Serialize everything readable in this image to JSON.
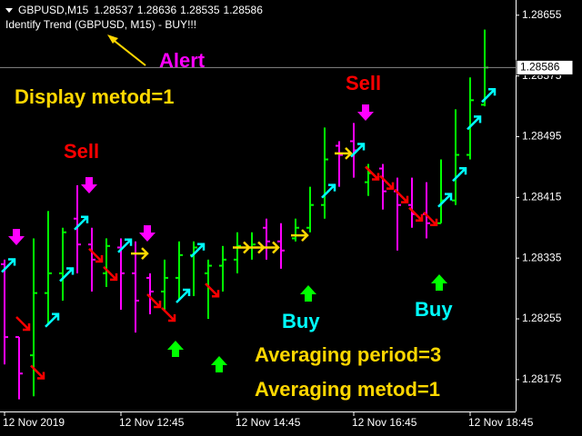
{
  "chart_data": {
    "type": "ohlc",
    "symbol": "GBPUSD,M15",
    "indicator_text": "Identify Trend (GBPUSD, M15)  -  BUY!!!",
    "annotations": {
      "alert": "Alert",
      "display": "Display metod=1",
      "sell_1": "Sell",
      "sell_2": "Sell",
      "buy_1": "Buy",
      "buy_2": "Buy",
      "period": "Averaging period=3",
      "method": "Averaging metod=1"
    },
    "up_color": "#00ff00",
    "down_color": "#ff00ff",
    "open": [
      1.28327,
      1.28231,
      1.28207,
      1.28289,
      1.28315,
      1.28387,
      1.28353,
      1.28315,
      1.28349,
      1.28315,
      1.28309,
      1.28291,
      1.28309,
      1.28339,
      1.28315,
      1.28325,
      1.28333,
      1.28349,
      1.28375,
      1.28357,
      1.28361,
      1.28375,
      1.28405,
      1.28483,
      1.28489,
      1.28435,
      1.28453,
      1.28423,
      1.28405,
      1.28393,
      1.28381,
      1.28411,
      1.28471,
      1.28537
    ],
    "high": [
      1.28333,
      1.28231,
      1.28361,
      1.28397,
      1.28375,
      1.28431,
      1.28375,
      1.28361,
      1.28361,
      1.28357,
      1.28315,
      1.28333,
      1.28357,
      1.28357,
      1.28333,
      1.28351,
      1.28369,
      1.28369,
      1.28387,
      1.28381,
      1.28387,
      1.28429,
      1.28507,
      1.28489,
      1.28513,
      1.28459,
      1.28459,
      1.28441,
      1.28441,
      1.28435,
      1.28465,
      1.28531,
      1.28573,
      1.28636
    ],
    "low": [
      1.28195,
      1.28149,
      1.28153,
      1.28249,
      1.28279,
      1.28315,
      1.28291,
      1.28297,
      1.28267,
      1.28237,
      1.28261,
      1.28267,
      1.28279,
      1.28285,
      1.28255,
      1.28291,
      1.28315,
      1.28333,
      1.28333,
      1.28321,
      1.28357,
      1.28369,
      1.28387,
      1.28429,
      1.28441,
      1.28417,
      1.28399,
      1.28345,
      1.28375,
      1.28361,
      1.28381,
      1.28405,
      1.28465,
      1.28535
    ],
    "close": [
      1.28231,
      1.28183,
      1.28289,
      1.28315,
      1.28369,
      1.28353,
      1.28333,
      1.28351,
      1.28315,
      1.28279,
      1.28291,
      1.28309,
      1.28339,
      1.28349,
      1.28325,
      1.28333,
      1.28351,
      1.28353,
      1.28357,
      1.28345,
      1.28375,
      1.28405,
      1.28465,
      1.28471,
      1.28477,
      1.28447,
      1.28423,
      1.28405,
      1.28393,
      1.28381,
      1.28411,
      1.28471,
      1.28543,
      1.28586
    ],
    "signals": [
      {
        "bar": 0,
        "price": 1.28325,
        "dir": "up"
      },
      {
        "bar": 3,
        "price": 1.28253,
        "dir": "up"
      },
      {
        "bar": 4,
        "price": 1.28313,
        "dir": "up"
      },
      {
        "bar": 5,
        "price": 1.28381,
        "dir": "up"
      },
      {
        "bar": 8,
        "price": 1.28351,
        "dir": "up"
      },
      {
        "bar": 12,
        "price": 1.28285,
        "dir": "up"
      },
      {
        "bar": 13,
        "price": 1.28345,
        "dir": "up"
      },
      {
        "bar": 22,
        "price": 1.28423,
        "dir": "up"
      },
      {
        "bar": 24,
        "price": 1.28477,
        "dir": "up"
      },
      {
        "bar": 30,
        "price": 1.28411,
        "dir": "up"
      },
      {
        "bar": 31,
        "price": 1.28445,
        "dir": "up"
      },
      {
        "bar": 32,
        "price": 1.28513,
        "dir": "up"
      },
      {
        "bar": 33,
        "price": 1.28549,
        "dir": "up"
      },
      {
        "bar": 1,
        "price": 1.28249,
        "dir": "down"
      },
      {
        "bar": 2,
        "price": 1.28185,
        "dir": "down"
      },
      {
        "bar": 6,
        "price": 1.28339,
        "dir": "down"
      },
      {
        "bar": 7,
        "price": 1.28315,
        "dir": "down"
      },
      {
        "bar": 10,
        "price": 1.28279,
        "dir": "down"
      },
      {
        "bar": 11,
        "price": 1.28261,
        "dir": "down"
      },
      {
        "bar": 14,
        "price": 1.28293,
        "dir": "down"
      },
      {
        "bar": 25,
        "price": 1.28447,
        "dir": "down"
      },
      {
        "bar": 26,
        "price": 1.28435,
        "dir": "down"
      },
      {
        "bar": 27,
        "price": 1.28417,
        "dir": "down"
      },
      {
        "bar": 28,
        "price": 1.28393,
        "dir": "down"
      },
      {
        "bar": 29,
        "price": 1.28387,
        "dir": "down"
      },
      {
        "bar": 9,
        "price": 1.28341,
        "dir": "side"
      },
      {
        "bar": 16,
        "price": 1.28349,
        "dir": "side"
      },
      {
        "bar": 17,
        "price": 1.28349,
        "dir": "side"
      },
      {
        "bar": 18,
        "price": 1.28349,
        "dir": "side"
      },
      {
        "bar": 20,
        "price": 1.28365,
        "dir": "side"
      },
      {
        "bar": 23,
        "price": 1.28473,
        "dir": "side"
      }
    ],
    "signal_colors": {
      "up": "#00ffff",
      "down": "#ff0000",
      "side": "#ffd700"
    },
    "ylim": [
      1.28133,
      1.28675
    ],
    "yticks": [
      1.28655,
      1.28575,
      1.28495,
      1.28415,
      1.28335,
      1.28255,
      1.28175
    ],
    "time_labels": [
      {
        "value": 0,
        "label": "12 Nov 2019"
      },
      {
        "value": 8,
        "label": "12 Nov 12:45"
      },
      {
        "value": 16,
        "label": "12 Nov 14:45"
      },
      {
        "value": 24,
        "label": "12 Nov 16:45"
      },
      {
        "value": 32,
        "label": "12 Nov 18:45"
      }
    ]
  }
}
